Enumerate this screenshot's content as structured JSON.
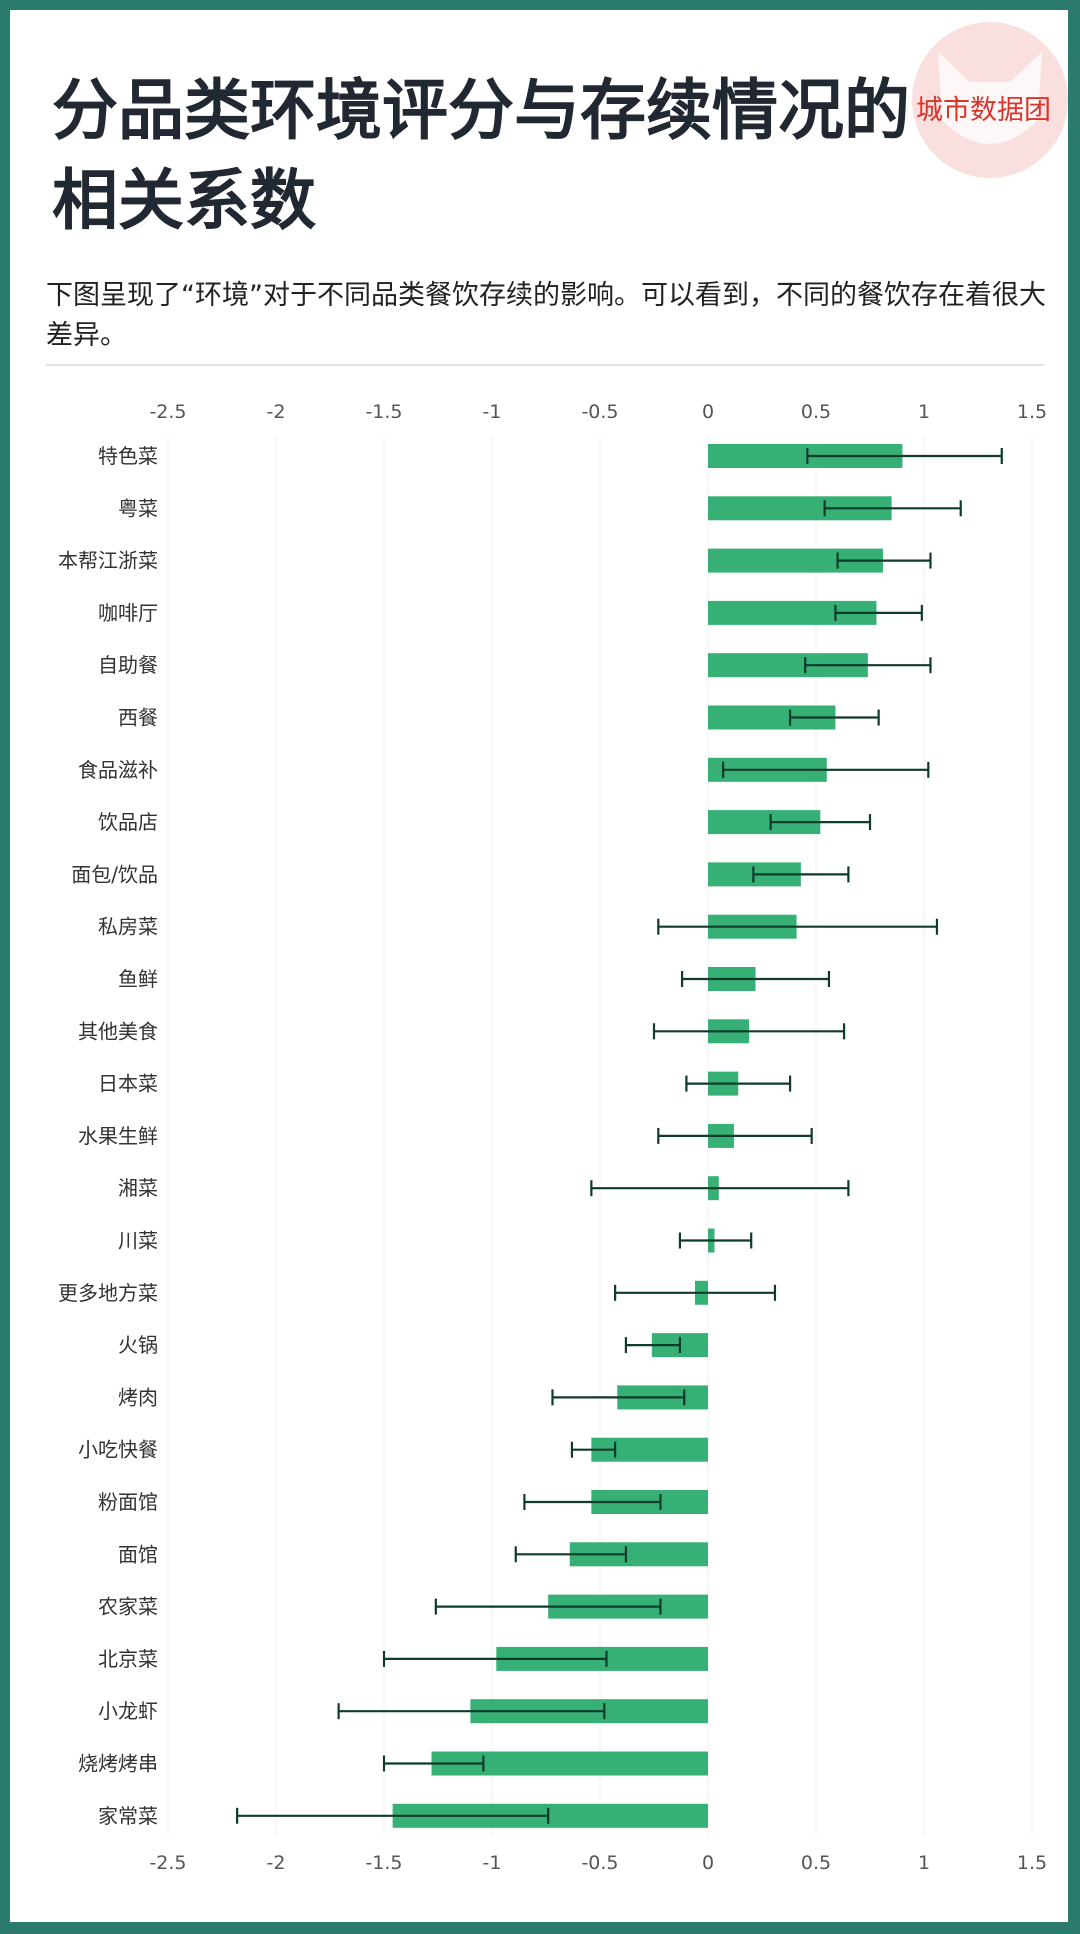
{
  "header": {
    "title": "分品类环境评分与存续情况的相关系数",
    "subtitle": "下图呈现了“环境”对于不同品类餐饮存续的影响。可以看到，不同的餐饮存在着很大差异。",
    "brand": "城市数据团"
  },
  "colors": {
    "bar": "#36b074",
    "error_bar": "#0e3b2a",
    "frame": "#2b7a6e",
    "brand": "#d9352c",
    "logo_bg": "#f9e0de"
  },
  "chart_data": {
    "type": "bar",
    "orientation": "horizontal",
    "title": "",
    "xlabel": "",
    "ylabel": "",
    "xlim": [
      -2.5,
      1.5
    ],
    "x_ticks": [
      -2.5,
      -2,
      -1.5,
      -1,
      -0.5,
      0,
      0.5,
      1,
      1.5
    ],
    "x_tick_labels": [
      "-2.5",
      "-2",
      "-1.5",
      "-1",
      "-0.5",
      "0",
      "0.5",
      "1",
      "1.5"
    ],
    "axis_labels_top_and_bottom": true,
    "grid": true,
    "categories": [
      "特色菜",
      "粤菜",
      "本帮江浙菜",
      "咖啡厅",
      "自助餐",
      "西餐",
      "食品滋补",
      "饮品店",
      "面包/饮品",
      "私房菜",
      "鱼鲜",
      "其他美食",
      "日本菜",
      "水果生鲜",
      "湘菜",
      "川菜",
      "更多地方菜",
      "火锅",
      "烤肉",
      "小吃快餐",
      "粉面馆",
      "面馆",
      "农家菜",
      "北京菜",
      "小龙虾",
      "烧烤烤串",
      "家常菜"
    ],
    "values": [
      0.9,
      0.85,
      0.81,
      0.78,
      0.74,
      0.59,
      0.55,
      0.52,
      0.43,
      0.41,
      0.22,
      0.19,
      0.14,
      0.12,
      0.05,
      0.03,
      -0.06,
      -0.26,
      -0.42,
      -0.54,
      -0.54,
      -0.64,
      -0.74,
      -0.98,
      -1.1,
      -1.28,
      -1.46
    ],
    "error_low": [
      0.46,
      0.54,
      0.6,
      0.59,
      0.45,
      0.38,
      0.07,
      0.29,
      0.21,
      -0.23,
      -0.12,
      -0.25,
      -0.1,
      -0.23,
      -0.54,
      -0.13,
      -0.43,
      -0.38,
      -0.72,
      -0.63,
      -0.85,
      -0.89,
      -1.26,
      -1.5,
      -1.71,
      -1.5,
      -2.18
    ],
    "error_high": [
      1.36,
      1.17,
      1.03,
      0.99,
      1.03,
      0.79,
      1.02,
      0.75,
      0.65,
      1.06,
      0.56,
      0.63,
      0.38,
      0.48,
      0.65,
      0.2,
      0.31,
      -0.13,
      -0.11,
      -0.43,
      -0.22,
      -0.38,
      -0.22,
      -0.47,
      -0.48,
      -1.04,
      -0.74
    ]
  }
}
